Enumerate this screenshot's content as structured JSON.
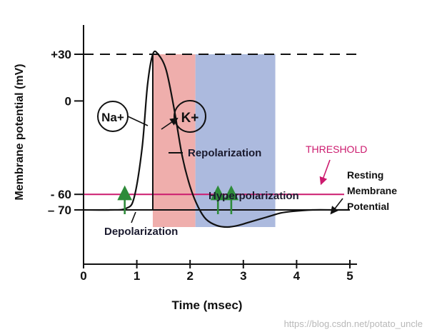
{
  "chart_data": {
    "type": "line",
    "xlabel": "Time (msec)",
    "ylabel": "Membrane potential (mV)",
    "xlim": [
      0,
      5
    ],
    "ylim": [
      -90,
      40
    ],
    "x_ticks": [
      "0",
      "1",
      "2",
      "3",
      "4",
      "5"
    ],
    "y_tick_labels": [
      {
        "value": 30,
        "text": "+30"
      },
      {
        "value": 0,
        "text": "0"
      },
      {
        "value": -60,
        "text": "- 60"
      },
      {
        "value": -70,
        "text": "– 70"
      }
    ],
    "series": [
      {
        "x": [
          0,
          0.5,
          0.8,
          0.95,
          1.1,
          1.2,
          1.3,
          1.4,
          1.55,
          1.7,
          1.85,
          2.0,
          2.15,
          2.3,
          2.5,
          2.7,
          2.9,
          3.1,
          3.3,
          3.5,
          3.7,
          3.9,
          4.3,
          4.7,
          5.0
        ],
        "y": [
          -70,
          -70,
          -69,
          -62,
          -30,
          10,
          30,
          30,
          20,
          -5,
          -35,
          -55,
          -68,
          -76,
          -80,
          -81,
          -80,
          -78,
          -76,
          -74,
          -72,
          -71,
          -70,
          -70,
          -70
        ]
      }
    ],
    "peak_level": 30,
    "threshold": {
      "value": -60,
      "label": "THRESHOLD",
      "color": "#cc1a6e"
    },
    "regions": [
      {
        "x0": 1.3,
        "x1": 2.1,
        "color": "#eeaaa8"
      },
      {
        "x0": 2.1,
        "x1": 3.6,
        "color": "#a8b6dc"
      }
    ],
    "stimulus_arrows": [
      0.8,
      2.55,
      2.8
    ],
    "arrow_color": "#2e8b3a",
    "annotations": {
      "na": "Na+",
      "k": "K+",
      "repolarization": "Repolarization",
      "depolarization": "Depolarization",
      "hyperpolarization": "Hyperpolarization",
      "resting": [
        "Resting",
        "Membrane",
        "Potential"
      ]
    }
  },
  "watermark": "https://blog.csdn.net/potato_uncle"
}
